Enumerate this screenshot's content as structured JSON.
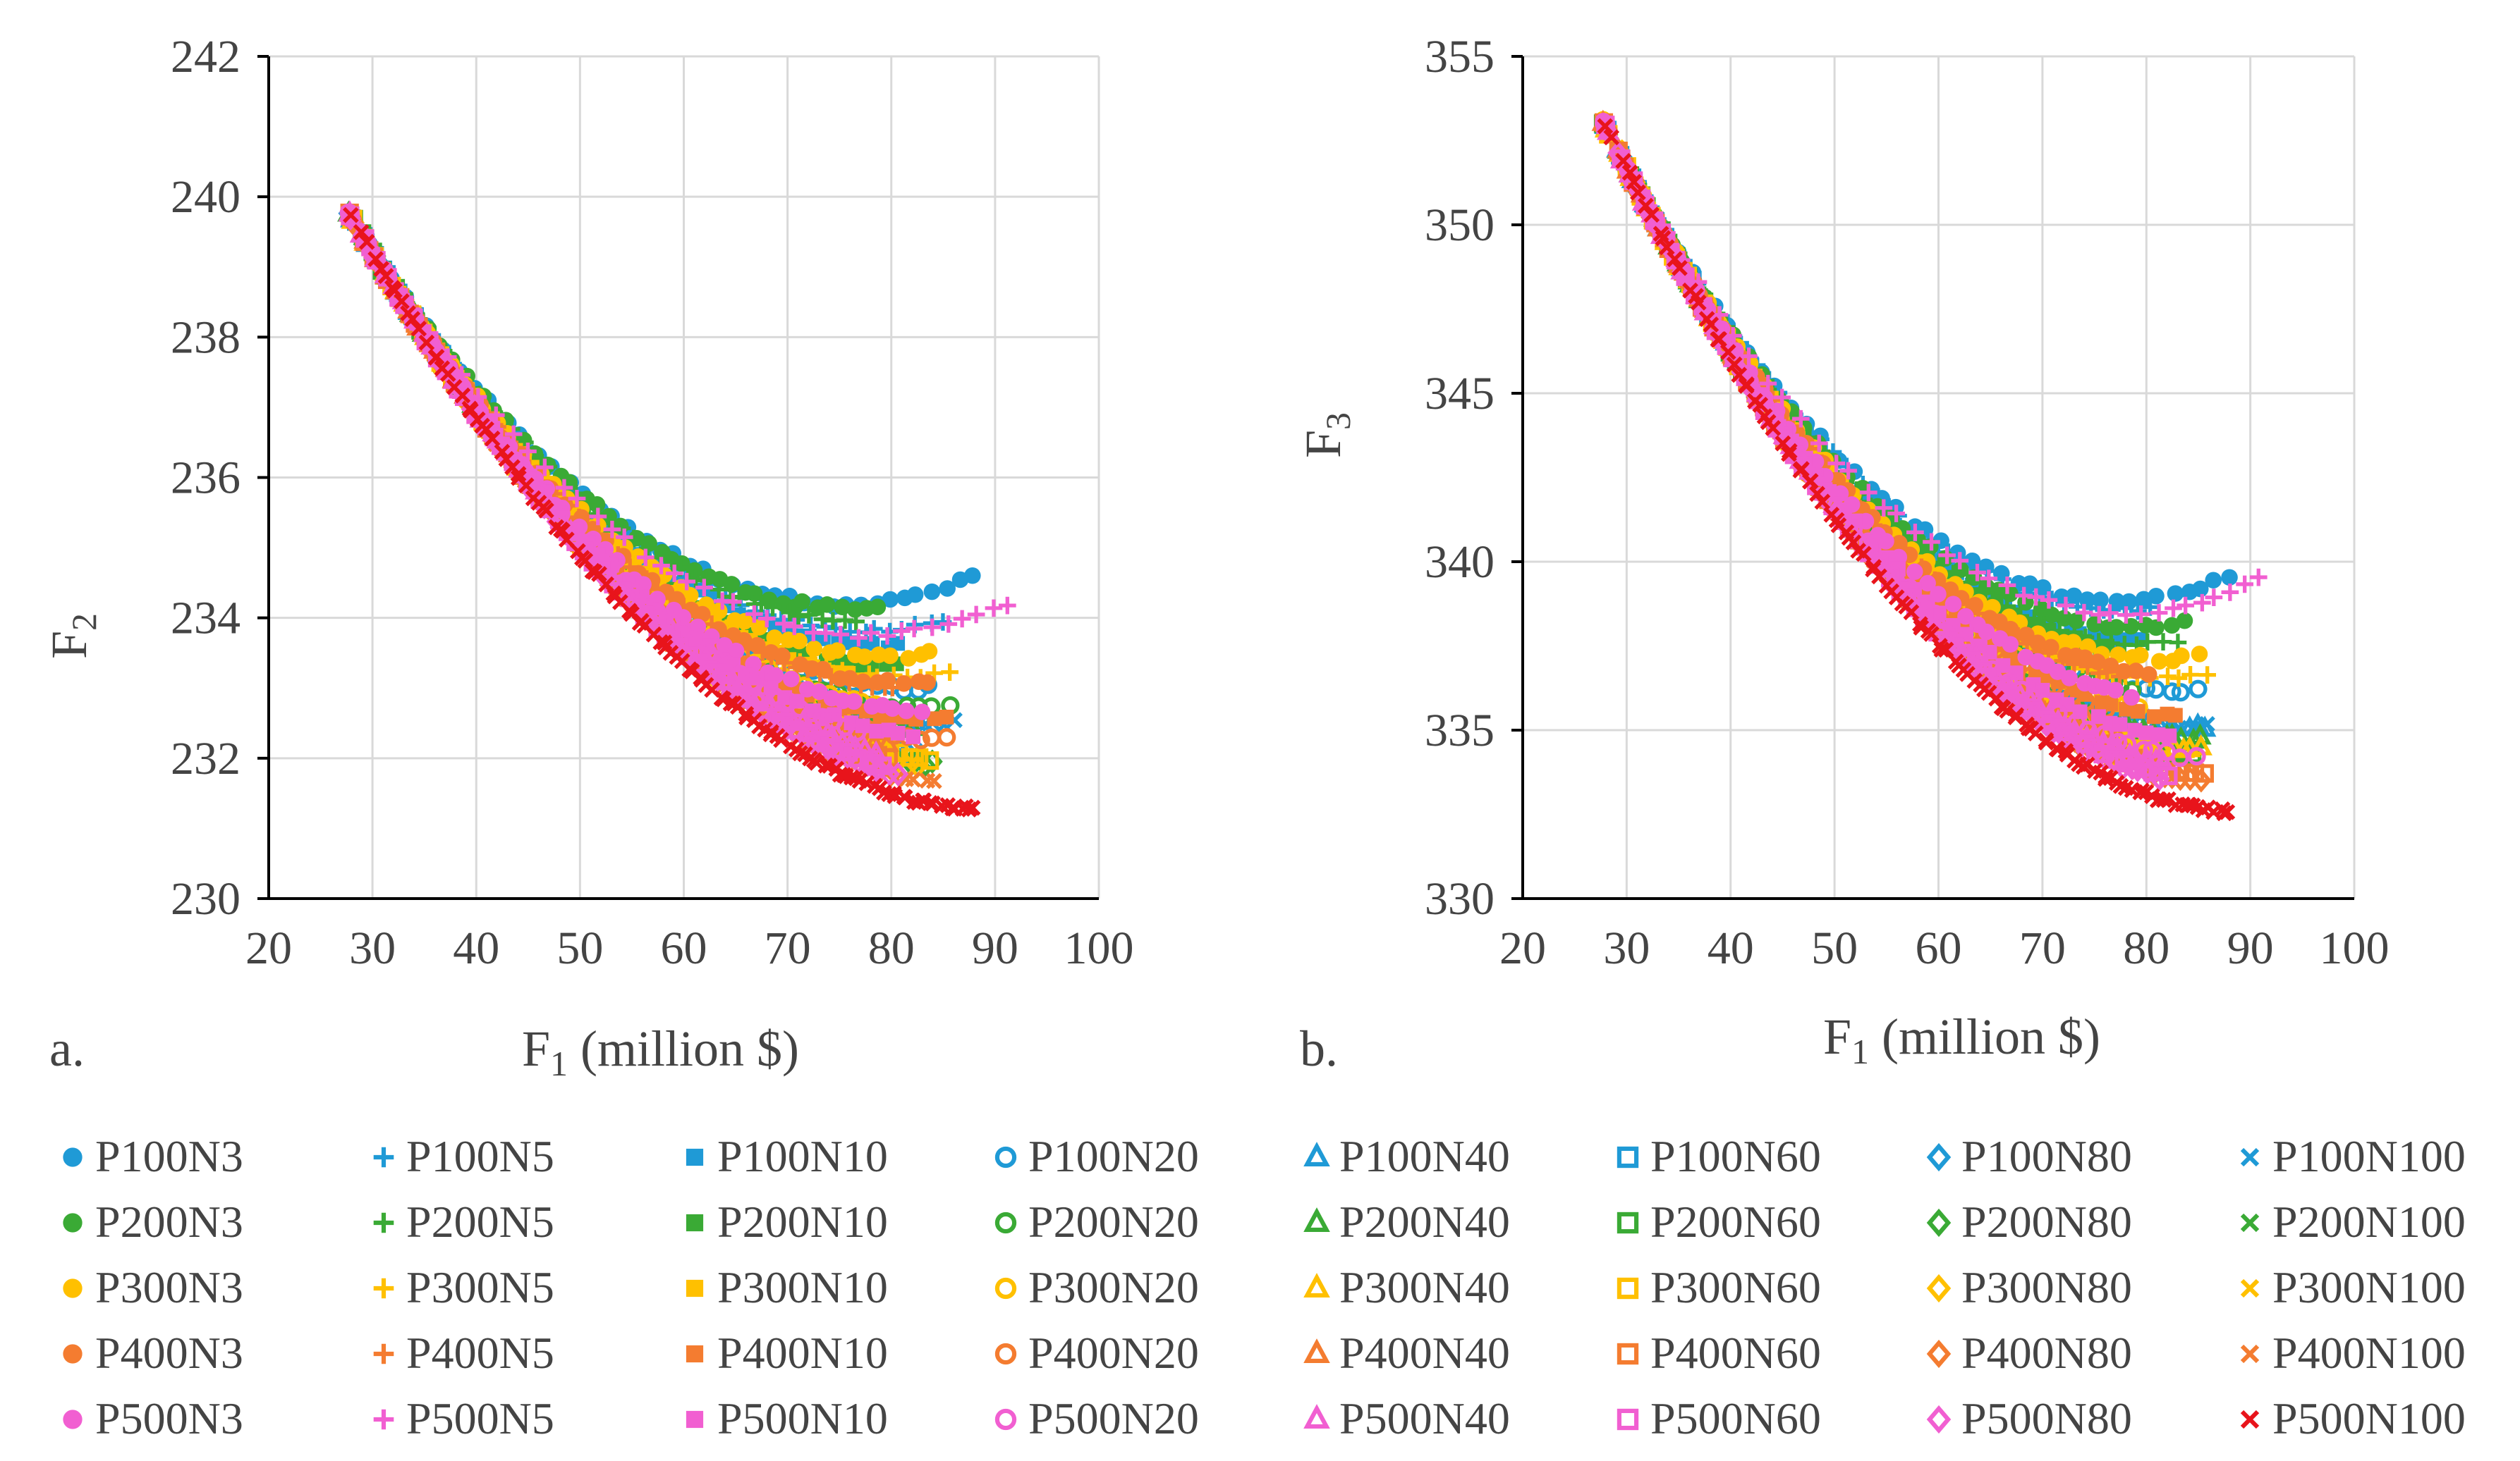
{
  "figure": {
    "legend": [
      "P100N3",
      "P100N5",
      "P100N10",
      "P100N20",
      "P100N40",
      "P100N60",
      "P100N80",
      "P100N100",
      "P200N3",
      "P200N5",
      "P200N10",
      "P200N20",
      "P200N40",
      "P200N60",
      "P200N80",
      "P200N100",
      "P300N3",
      "P300N5",
      "P300N10",
      "P300N20",
      "P300N40",
      "P300N60",
      "P300N80",
      "P300N100",
      "P400N3",
      "P400N5",
      "P400N10",
      "P400N20",
      "P400N40",
      "P400N60",
      "P400N80",
      "P400N100",
      "P500N3",
      "P500N5",
      "P500N10",
      "P500N20",
      "P500N40",
      "P500N60",
      "P500N80",
      "P500N100"
    ],
    "population_colors": {
      "P100": "#1f9ad6",
      "P200": "#3aaa35",
      "P300": "#ffc000",
      "P400": "#f47c30",
      "P500": "#f15fd1",
      "P500N100": "#e8141b"
    },
    "marker_styles": {
      "N3": "filled-circle",
      "N5": "plus",
      "N10": "filled-square",
      "N20": "open-circle",
      "N40": "open-triangle",
      "N60": "open-square",
      "N80": "open-diamond",
      "N100": "cross"
    }
  },
  "chart_data": [
    {
      "type": "scatter",
      "panel_label": "a.",
      "xlabel_main": "F",
      "xlabel_sub": "1",
      "xlabel_unit": " (million $)",
      "ylabel_main": "F",
      "ylabel_sub": "2",
      "xlim": [
        20,
        100
      ],
      "ylim": [
        230,
        242
      ],
      "x_ticks": [
        "20",
        "30",
        "40",
        "50",
        "60",
        "70",
        "80",
        "90",
        "100"
      ],
      "y_ticks": [
        "230",
        "232",
        "234",
        "236",
        "238",
        "240",
        "242"
      ],
      "grid": true,
      "front_model": {
        "start": [
          28,
          239.7
        ],
        "lower_end": [
          88,
          231.3
        ]
      },
      "series_spread": {
        "P100N3": {
          "x_end": 88,
          "y_end_offset": 3.3
        },
        "P100N100": {
          "x_end": 86,
          "y_end_offset": 1.2
        },
        "P500N100": {
          "x_end": 88,
          "y_end_offset": 0.0
        },
        "P500N5": {
          "x_end": 91,
          "y_end_offset": 2.9
        }
      }
    },
    {
      "type": "scatter",
      "panel_label": "b.",
      "xlabel_main": "F",
      "xlabel_sub": "1",
      "xlabel_unit": " (million $)",
      "ylabel_main": "F",
      "ylabel_sub": "3",
      "xlim": [
        20,
        100
      ],
      "ylim": [
        330,
        355
      ],
      "x_ticks": [
        "20",
        "30",
        "40",
        "50",
        "60",
        "70",
        "80",
        "90",
        "100"
      ],
      "y_ticks": [
        "330",
        "335",
        "340",
        "345",
        "350",
        "355"
      ],
      "grid": true,
      "front_model": {
        "start": [
          28,
          352.9
        ],
        "lower_end": [
          88,
          332.6
        ]
      },
      "series_spread": {
        "P100N3": {
          "x_end": 88,
          "y_end_offset": 7.0
        },
        "P100N100": {
          "x_end": 86,
          "y_end_offset": 2.5
        },
        "P500N100": {
          "x_end": 88,
          "y_end_offset": 0.0
        },
        "P500N5": {
          "x_end": 91,
          "y_end_offset": 6.9
        }
      }
    }
  ]
}
